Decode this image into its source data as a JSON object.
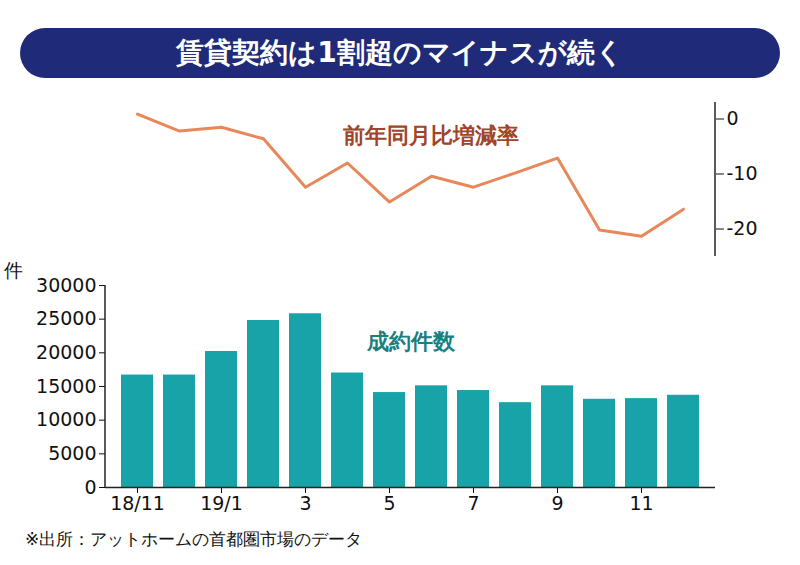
{
  "chart_data": [
    {
      "type": "line",
      "title": "賃貸契約は1割超のマイナスが続く",
      "categories": [
        "18/11",
        null,
        "19/1",
        null,
        "3",
        null,
        "5",
        null,
        "7",
        null,
        "9",
        null,
        "11",
        null
      ],
      "series": [
        {
          "name": "前年同月比増減率",
          "color": "#e8875a",
          "values": [
            0.9,
            -2.2,
            -1.5,
            -3.6,
            -12.4,
            -8,
            -15.1,
            -10.4,
            -12.4,
            -9.8,
            -7.1,
            -20.2,
            -21.3,
            -16.4
          ]
        }
      ],
      "ylim": [
        -25,
        3
      ],
      "yticks": [
        0,
        -10,
        -20
      ],
      "tick_labels": "y"
    },
    {
      "type": "bar",
      "categories": [
        "18/11",
        null,
        "19/1",
        null,
        "3",
        null,
        "5",
        null,
        "7",
        null,
        "9",
        null,
        "11",
        null
      ],
      "series": [
        {
          "name": "成約件数",
          "color": "#17a3a8",
          "values": [
            16700,
            16700,
            20200,
            24800,
            25800,
            17000,
            14100,
            15100,
            14400,
            12600,
            15100,
            13100,
            13200,
            13700
          ]
        }
      ],
      "ylabel": "件",
      "ylim": [
        0,
        30000
      ],
      "yticks": [
        0,
        5000,
        10000,
        15000,
        20000,
        25000,
        30000
      ],
      "caption": "※出所：アットホームの首都圏市場のデータ"
    }
  ]
}
